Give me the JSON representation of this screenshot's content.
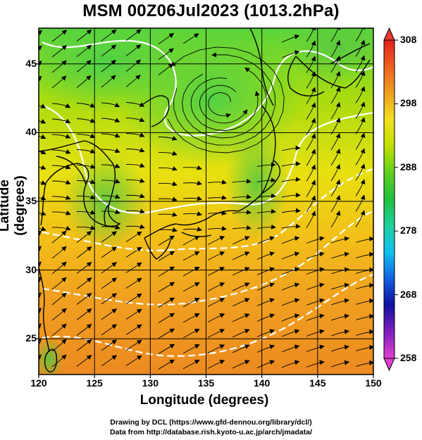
{
  "title": "MSM 00Z06Jul2023 (1013.2hPa)",
  "xlabel": "Longitude (degrees)",
  "ylabel": "Latitude  (degrees)",
  "x_ticks": [
    120,
    125,
    130,
    135,
    140,
    145,
    150
  ],
  "y_ticks": [
    25,
    30,
    35,
    40,
    45
  ],
  "lon_range": [
    120,
    150
  ],
  "lat_range": [
    22.4,
    47.6
  ],
  "colorbar": {
    "ticks": [
      258,
      268,
      278,
      288,
      298,
      308
    ],
    "range": [
      258,
      308
    ],
    "colors": [
      "#e040d0",
      "#8020c0",
      "#1010a0",
      "#1060e0",
      "#10c0f0",
      "#20d0a0",
      "#20c040",
      "#60d020",
      "#c0e000",
      "#f0e020",
      "#f0a020",
      "#f06020",
      "#e02020"
    ]
  },
  "credits": {
    "line1": "Drawing by DCL (https://www.gfd-dennou.org/library/dcl/)",
    "line2": "Data from http://database.rish.kyoto-u.ac.jp/arch/jmadata/"
  }
}
